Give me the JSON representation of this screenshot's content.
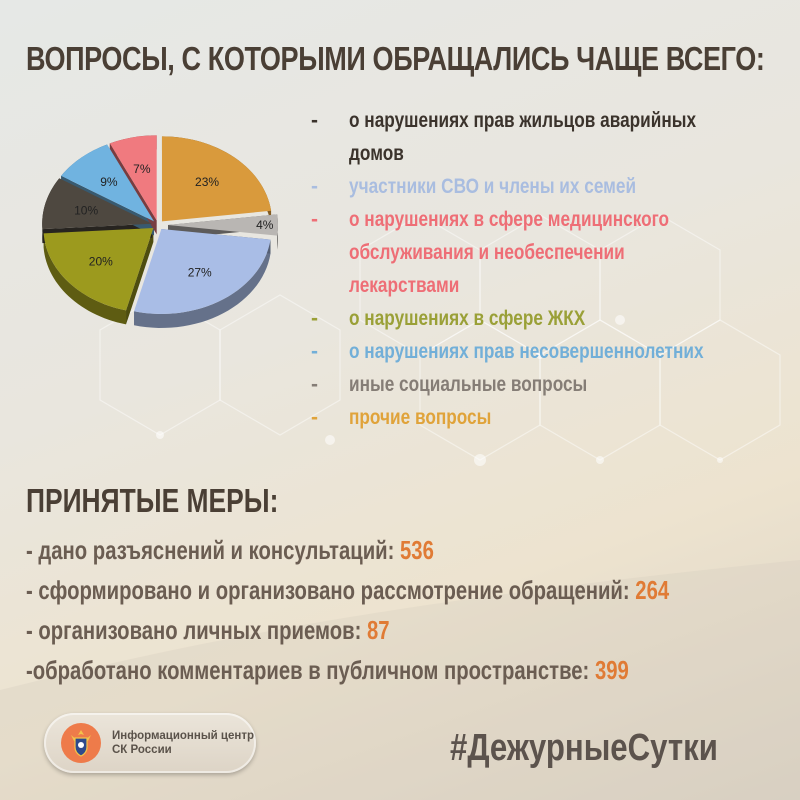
{
  "title": "ВОПРОСЫ, С КОТОРЫМИ ОБРАЩАЛИСЬ ЧАЩЕ ВСЕГО:",
  "legend": [
    {
      "dash": "-",
      "text": "о нарушениях прав жильцов аварийных",
      "text2": "домов",
      "color": "#3b332c"
    },
    {
      "dash": "-",
      "text": "участники СВО и члены их семей",
      "color": "#a9bde0"
    },
    {
      "dash": "-",
      "text": "о нарушениях в сфере медицинского",
      "text2": "обслуживания и необеспечении",
      "text3": "лекарствами",
      "color": "#ee6e76"
    },
    {
      "dash": "-",
      "text": "о нарушениях в сфере ЖКХ",
      "color": "#9aa037"
    },
    {
      "dash": "-",
      "text": "о нарушениях прав несовершеннолетних",
      "color": "#72afd8"
    },
    {
      "dash": "-",
      "text": "иные социальные вопросы",
      "color": "#857d76"
    },
    {
      "dash": "-",
      "text": "прочие вопросы",
      "color": "#e0a33a"
    }
  ],
  "chart_data": {
    "type": "pie",
    "title": "ВОПРОСЫ, С КОТОРЫМИ ОБРАЩАЛИСЬ ЧАЩЕ ВСЕГО:",
    "categories": [
      "прочие вопросы",
      "иные социальные вопросы",
      "участники СВО и члены их семей",
      "о нарушениях в сфере ЖКХ",
      "о нарушениях прав жильцов аварийных домов",
      "о нарушениях прав несовершеннолетних",
      "о нарушениях в сфере медицинского обслуживания и необеспечении лекарствами"
    ],
    "values": [
      23,
      4,
      27,
      20,
      10,
      9,
      7
    ],
    "labels": [
      "23%",
      "4%",
      "27%",
      "20%",
      "10%",
      "9%",
      "7%"
    ],
    "colors": [
      "#d99a3c",
      "#b9b6b3",
      "#a9bde6",
      "#9c9a1e",
      "#4e4840",
      "#70b3e0",
      "#f07a7f"
    ],
    "unit": "%",
    "legend_position": "right",
    "exploded": true,
    "style": "3d"
  },
  "measures": {
    "title": "ПРИНЯТЫЕ МЕРЫ:",
    "items": [
      {
        "label": "- дано разъяснений и консультаций: ",
        "value": "536"
      },
      {
        "label": "- сформировано и организовано рассмотрение обращений: ",
        "value": "264"
      },
      {
        "label": "- организовано личных приемов: ",
        "value": "87"
      },
      {
        "label": "-обработано комментариев в публичном пространстве: ",
        "value": "399"
      }
    ]
  },
  "badge": {
    "line1": "Информационный центр",
    "line2": "СК России"
  },
  "hashtag": "#ДежурныеСутки"
}
